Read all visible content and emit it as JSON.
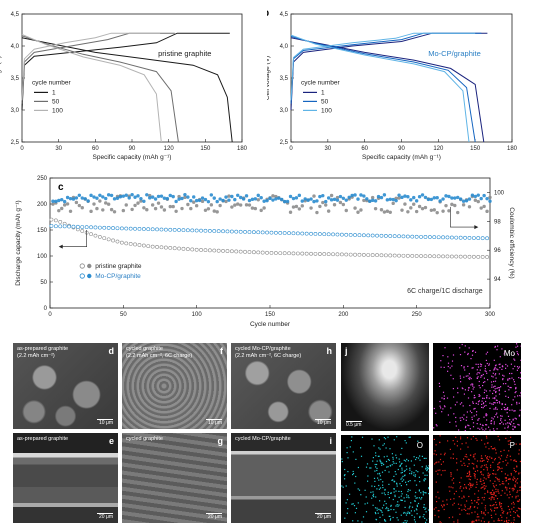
{
  "chart_data": [
    {
      "panel": "a",
      "type": "line",
      "title": "pristine graphite",
      "xlabel": "Specific capacity (mAh g⁻¹)",
      "ylabel": "Cell voltage (V)",
      "xlim": [
        0,
        180
      ],
      "ylim": [
        2.5,
        4.5
      ],
      "xticks": [
        "0",
        "30",
        "60",
        "90",
        "120",
        "150",
        "180"
      ],
      "yticks": [
        "2,5",
        "3,0",
        "3,5",
        "4,0",
        "4,5"
      ],
      "legend_title": "cycle number",
      "series": [
        {
          "name": "1",
          "color": "#1a1a1a",
          "charge": [
            [
              0,
              3.0
            ],
            [
              2,
              3.7
            ],
            [
              10,
              3.84
            ],
            [
              40,
              3.9
            ],
            [
              80,
              3.98
            ],
            [
              110,
              4.05
            ],
            [
              127,
              4.2
            ],
            [
              170,
              4.2
            ]
          ],
          "discharge": [
            [
              0,
              4.13
            ],
            [
              20,
              4.05
            ],
            [
              60,
              3.9
            ],
            [
              100,
              3.8
            ],
            [
              140,
              3.7
            ],
            [
              160,
              3.55
            ],
            [
              168,
              3.2
            ],
            [
              172,
              2.5
            ]
          ]
        },
        {
          "name": "50",
          "color": "#6e6e6e",
          "charge": [
            [
              0,
              3.1
            ],
            [
              2,
              3.75
            ],
            [
              10,
              3.9
            ],
            [
              40,
              4.0
            ],
            [
              70,
              4.1
            ],
            [
              88,
              4.2
            ],
            [
              125,
              4.2
            ]
          ],
          "discharge": [
            [
              0,
              4.16
            ],
            [
              20,
              4.03
            ],
            [
              50,
              3.87
            ],
            [
              80,
              3.75
            ],
            [
              110,
              3.6
            ],
            [
              122,
              3.3
            ],
            [
              128,
              2.5
            ]
          ]
        },
        {
          "name": "100",
          "color": "#b3b3b3",
          "charge": [
            [
              0,
              3.15
            ],
            [
              2,
              3.8
            ],
            [
              10,
              3.95
            ],
            [
              35,
              4.05
            ],
            [
              60,
              4.13
            ],
            [
              73,
              4.2
            ],
            [
              113,
              4.2
            ]
          ],
          "discharge": [
            [
              0,
              4.18
            ],
            [
              20,
              4.02
            ],
            [
              50,
              3.83
            ],
            [
              80,
              3.7
            ],
            [
              100,
              3.55
            ],
            [
              110,
              3.25
            ],
            [
              114,
              2.5
            ]
          ]
        }
      ]
    },
    {
      "panel": "b",
      "type": "line",
      "title": "Mo-CP/graphite",
      "xlabel": "Specific capacity (mAh g⁻¹)",
      "ylabel": "Cell voltage (V)",
      "xlim": [
        0,
        180
      ],
      "ylim": [
        2.5,
        4.5
      ],
      "xticks": [
        "0",
        "30",
        "60",
        "90",
        "120",
        "150",
        "180"
      ],
      "yticks": [
        "2,5",
        "3,0",
        "3,5",
        "4,0",
        "4,5"
      ],
      "legend_title": "cycle number",
      "series": [
        {
          "name": "1",
          "color": "#1a237e",
          "charge": [
            [
              0,
              3.0
            ],
            [
              2,
              3.75
            ],
            [
              10,
              3.9
            ],
            [
              50,
              4.0
            ],
            [
              90,
              4.07
            ],
            [
              115,
              4.2
            ],
            [
              160,
              4.2
            ]
          ],
          "discharge": [
            [
              0,
              4.13
            ],
            [
              20,
              4.05
            ],
            [
              60,
              3.9
            ],
            [
              100,
              3.78
            ],
            [
              130,
              3.65
            ],
            [
              150,
              3.4
            ],
            [
              157,
              2.5
            ]
          ]
        },
        {
          "name": "50",
          "color": "#1565c0",
          "charge": [
            [
              0,
              3.1
            ],
            [
              2,
              3.8
            ],
            [
              10,
              3.93
            ],
            [
              50,
              4.02
            ],
            [
              90,
              4.1
            ],
            [
              108,
              4.2
            ],
            [
              155,
              4.2
            ]
          ],
          "discharge": [
            [
              0,
              4.15
            ],
            [
              20,
              4.04
            ],
            [
              60,
              3.88
            ],
            [
              100,
              3.75
            ],
            [
              128,
              3.62
            ],
            [
              143,
              3.35
            ],
            [
              150,
              2.5
            ]
          ]
        },
        {
          "name": "100",
          "color": "#5fb4e6",
          "charge": [
            [
              0,
              3.15
            ],
            [
              2,
              3.82
            ],
            [
              10,
              3.95
            ],
            [
              50,
              4.05
            ],
            [
              85,
              4.12
            ],
            [
              100,
              4.2
            ],
            [
              150,
              4.2
            ]
          ],
          "discharge": [
            [
              0,
              4.17
            ],
            [
              20,
              4.03
            ],
            [
              60,
              3.86
            ],
            [
              100,
              3.72
            ],
            [
              125,
              3.6
            ],
            [
              140,
              3.3
            ],
            [
              145,
              2.5
            ]
          ]
        }
      ]
    },
    {
      "panel": "c",
      "type": "scatter",
      "xlabel": "Cycle number",
      "ylabel": "Discharge capacity (mAh g⁻¹)",
      "ylabel_right": "Coulombic efficiency (%)",
      "xlim": [
        0,
        300
      ],
      "ylim": [
        0,
        250
      ],
      "ylim_right": [
        92,
        101
      ],
      "xticks": [
        "0",
        "50",
        "100",
        "150",
        "200",
        "250",
        "300"
      ],
      "yticks": [
        "0",
        "50",
        "100",
        "150",
        "200",
        "250"
      ],
      "yticks_right": [
        "94",
        "96",
        "98",
        "100"
      ],
      "annotation": "6C charge/1C discharge",
      "series": [
        {
          "name": "pristine graphite",
          "color": "#8c8c8c",
          "capacity": [
            [
              1,
              170
            ],
            [
              5,
              168
            ],
            [
              10,
              162
            ],
            [
              20,
              150
            ],
            [
              30,
              140
            ],
            [
              40,
              132
            ],
            [
              50,
              125
            ],
            [
              70,
              118
            ],
            [
              100,
              112
            ],
            [
              150,
              106
            ],
            [
              200,
              103
            ],
            [
              250,
              100
            ],
            [
              300,
              98
            ]
          ],
          "coulombic_efficiency_mean": 99.2
        },
        {
          "name": "Mo-CP/graphite",
          "color": "#2a8ccf",
          "capacity": [
            [
              1,
              158
            ],
            [
              5,
              157
            ],
            [
              10,
              157
            ],
            [
              20,
              156
            ],
            [
              50,
              153
            ],
            [
              100,
              149
            ],
            [
              150,
              145
            ],
            [
              200,
              141
            ],
            [
              250,
              137
            ],
            [
              300,
              134
            ]
          ],
          "coulombic_efficiency_mean": 99.6
        }
      ]
    }
  ],
  "images": {
    "d": {
      "letter": "d",
      "caption": "as-prepared graphite\n(2.2 mAh cm⁻²)",
      "scale": "10 μm"
    },
    "f": {
      "letter": "f",
      "caption": "cycled graphite\n(2.2 mAh cm⁻², 6C charge)",
      "scale": "10 μm"
    },
    "h": {
      "letter": "h",
      "caption": "cycled Mo-CP/graphite\n(2.2 mAh cm⁻², 6C charge)",
      "scale": "10 μm"
    },
    "e": {
      "letter": "e",
      "caption": "as-prepared graphite",
      "scale": "20 μm"
    },
    "g": {
      "letter": "g",
      "caption": "cycled graphite",
      "scale": "20 μm"
    },
    "i": {
      "letter": "i",
      "caption": "cycled Mo-CP/graphite",
      "scale": "20 μm"
    },
    "j": {
      "letter": "j",
      "scale": "0.5 μm"
    },
    "eds_mo": {
      "label": "Mo",
      "color": "#e04adf"
    },
    "eds_o": {
      "label": "O",
      "color": "#22c7d0"
    },
    "eds_p": {
      "label": "P",
      "color": "#e0221c"
    }
  }
}
